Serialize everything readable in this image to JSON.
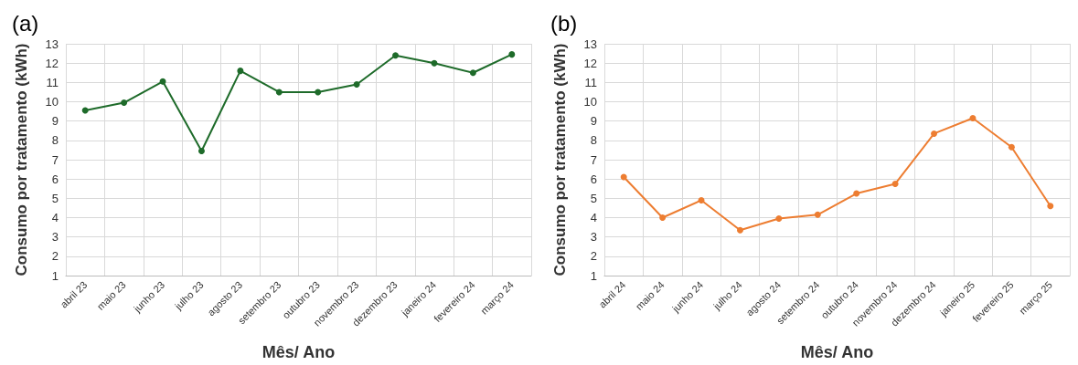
{
  "chart_data": [
    {
      "type": "line",
      "title": "(a)",
      "xlabel": "Mês/ Ano",
      "ylabel": "Consumo por tratamento (kWh)",
      "categories": [
        "abril 23",
        "maio 23",
        "junho 23",
        "julho 23",
        "agosto 23",
        "setembro 23",
        "outubro 23",
        "novembro 23",
        "dezembro 23",
        "janeiro 24",
        "fevereiro 24",
        "março 24"
      ],
      "series": [
        {
          "color": "#1e6b2a",
          "values": [
            9.55,
            9.95,
            11.05,
            7.45,
            11.6,
            10.5,
            10.5,
            10.9,
            12.4,
            12.0,
            11.5,
            12.45
          ]
        }
      ],
      "ylim": [
        1,
        13
      ],
      "yticks": [
        1,
        2,
        3,
        4,
        5,
        6,
        7,
        8,
        9,
        10,
        11,
        12,
        13
      ],
      "grid": true,
      "marker": "circle"
    },
    {
      "type": "line",
      "title": "(b)",
      "xlabel": "Mês/ Ano",
      "ylabel": "Consumo por tratamento (kWh)",
      "categories": [
        "abril 24",
        "maio 24",
        "junho 24",
        "julho 24",
        "agosto 24",
        "setembro 24",
        "outubro 24",
        "novembro 24",
        "dezembro 24",
        "janeiro 25",
        "fevereiro 25",
        "março 25"
      ],
      "series": [
        {
          "color": "#ed7d31",
          "values": [
            6.1,
            4.0,
            4.9,
            3.35,
            3.95,
            4.15,
            5.25,
            5.75,
            8.35,
            9.15,
            7.65,
            4.6
          ]
        }
      ],
      "ylim": [
        1,
        13
      ],
      "yticks": [
        1,
        2,
        3,
        4,
        5,
        6,
        7,
        8,
        9,
        10,
        11,
        12,
        13
      ],
      "grid": true,
      "marker": "circle"
    }
  ]
}
